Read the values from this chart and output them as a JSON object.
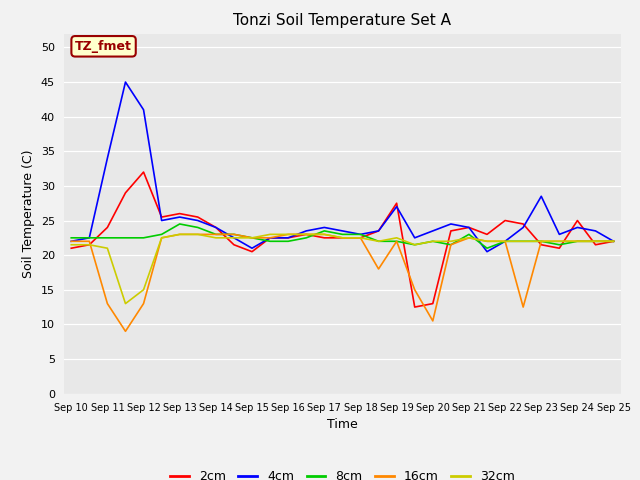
{
  "title": "Tonzi Soil Temperature Set A",
  "xlabel": "Time",
  "ylabel": "Soil Temperature (C)",
  "annotation_text": "TZ_fmet",
  "annotation_bg": "#FFFFCC",
  "annotation_border": "#990000",
  "plot_bg": "#E8E8E8",
  "fig_bg": "#F2F2F2",
  "ylim": [
    0,
    52
  ],
  "yticks": [
    0,
    5,
    10,
    15,
    20,
    25,
    30,
    35,
    40,
    45,
    50
  ],
  "x_labels": [
    "Sep 10",
    "Sep 11",
    "Sep 12",
    "Sep 13",
    "Sep 14",
    "Sep 15",
    "Sep 16",
    "Sep 17",
    "Sep 18",
    "Sep 19",
    "Sep 20",
    "Sep 21",
    "Sep 22",
    "Sep 23",
    "Sep 24",
    "Sep 25"
  ],
  "series": {
    "2cm": {
      "color": "#FF0000",
      "lw": 1.2,
      "values": [
        21.0,
        21.5,
        24.0,
        29.0,
        32.0,
        25.5,
        26.0,
        25.5,
        24.0,
        21.5,
        20.5,
        22.5,
        22.5,
        23.0,
        22.5,
        22.5,
        22.5,
        23.5,
        27.5,
        12.5,
        13.0,
        23.5,
        24.0,
        23.0,
        25.0,
        24.5,
        21.5,
        21.0,
        25.0,
        21.5,
        22.0
      ]
    },
    "4cm": {
      "color": "#0000FF",
      "lw": 1.2,
      "values": [
        22.0,
        22.5,
        34.0,
        45.0,
        41.0,
        25.0,
        25.5,
        25.0,
        24.0,
        22.5,
        21.0,
        22.5,
        22.5,
        23.5,
        24.0,
        23.5,
        23.0,
        23.5,
        27.0,
        22.5,
        23.5,
        24.5,
        24.0,
        20.5,
        22.0,
        24.0,
        28.5,
        23.0,
        24.0,
        23.5,
        22.0
      ]
    },
    "8cm": {
      "color": "#00CC00",
      "lw": 1.2,
      "values": [
        22.5,
        22.5,
        22.5,
        22.5,
        22.5,
        23.0,
        24.5,
        24.0,
        23.0,
        23.0,
        22.5,
        22.0,
        22.0,
        22.5,
        23.5,
        23.0,
        23.0,
        22.0,
        22.0,
        21.5,
        22.0,
        21.5,
        23.0,
        21.0,
        22.0,
        22.0,
        22.0,
        21.5,
        22.0,
        22.0,
        22.0
      ]
    },
    "16cm": {
      "color": "#FF8800",
      "lw": 1.2,
      "values": [
        22.0,
        22.0,
        13.0,
        9.0,
        13.0,
        22.5,
        23.0,
        23.0,
        23.0,
        23.0,
        22.5,
        22.5,
        23.0,
        23.0,
        23.0,
        22.5,
        22.5,
        18.0,
        22.0,
        15.0,
        10.5,
        21.5,
        22.5,
        22.0,
        22.0,
        12.5,
        22.0,
        22.0,
        22.0,
        22.0,
        22.0
      ]
    },
    "32cm": {
      "color": "#CCCC00",
      "lw": 1.2,
      "values": [
        21.5,
        21.5,
        21.0,
        13.0,
        15.0,
        22.5,
        23.0,
        23.0,
        22.5,
        22.5,
        22.5,
        23.0,
        23.0,
        23.0,
        23.0,
        22.5,
        22.5,
        22.0,
        22.5,
        21.5,
        22.0,
        22.0,
        22.5,
        22.0,
        22.0,
        22.0,
        22.0,
        22.0,
        22.0,
        22.0,
        22.0
      ]
    }
  },
  "legend_colors": {
    "2cm": "#FF0000",
    "4cm": "#0000FF",
    "8cm": "#00CC00",
    "16cm": "#FF8800",
    "32cm": "#CCCC00"
  }
}
